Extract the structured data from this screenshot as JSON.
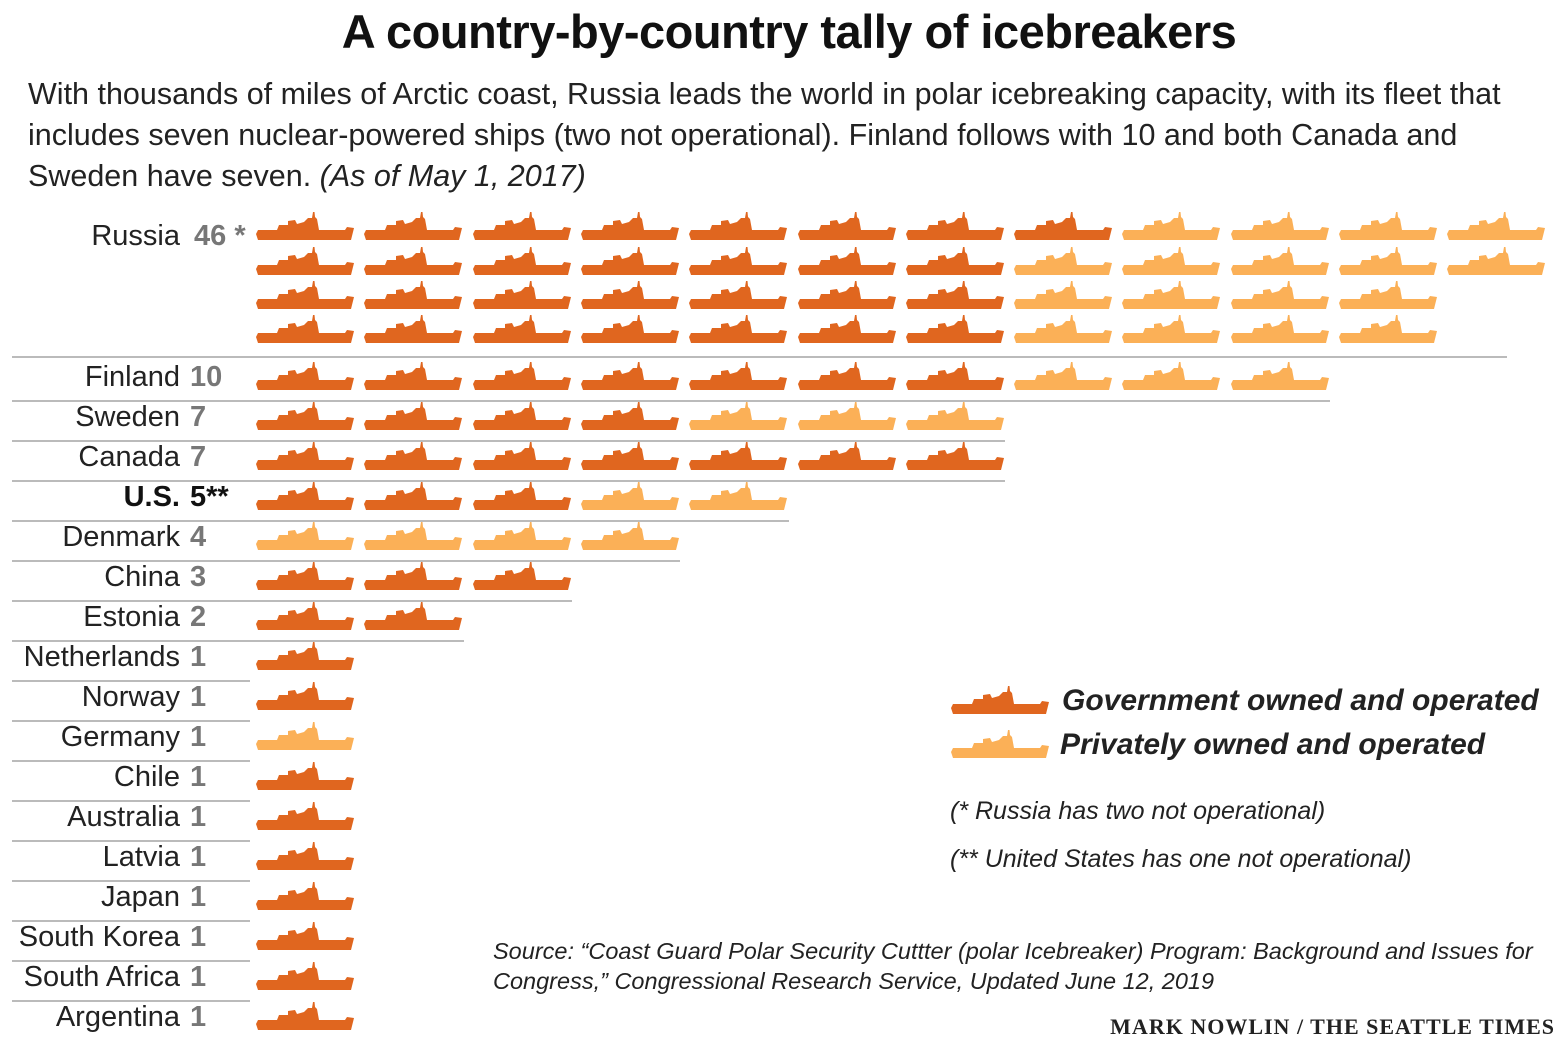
{
  "title": "A country-by-country tally of icebreakers",
  "subtitle": "With thousands of miles of Arctic coast, Russia leads the world in polar icebreaking capacity, with its fleet that includes seven nuclear-powered ships (two not operational). Finland follows with 10 and both Canada and Sweden have seven.",
  "subtitle_date": "(As of May 1, 2017)",
  "colors": {
    "government": "#e0661f",
    "private": "#fbb057"
  },
  "legend": {
    "government": "Government owned and operated",
    "private": "Privately owned and operated"
  },
  "notes": [
    "(* Russia has two not operational)",
    "(** United States has one not operational)"
  ],
  "source": "Source: “Coast Guard Polar Security Cuttter (polar Icebreaker) Program: Background and Issues for Congress,” Congressional Research Service, Updated June 12, 2019",
  "credit": "MARK NOWLIN / THE SEATTLE TIMES",
  "chart_data": {
    "type": "pictogram",
    "unit": "one icebreaker per icon",
    "categories": [
      "Russia",
      "Finland",
      "Sweden",
      "Canada",
      "U.S.",
      "Denmark",
      "China",
      "Estonia",
      "Netherlands",
      "Norway",
      "Germany",
      "Chile",
      "Australia",
      "Latvia",
      "Japan",
      "South Korea",
      "South Africa",
      "Argentina"
    ],
    "count_labels": [
      "46 *",
      "10",
      "7",
      "7",
      "5**",
      "4",
      "3",
      "2",
      "1",
      "1",
      "1",
      "1",
      "1",
      "1",
      "1",
      "1",
      "1",
      "1"
    ],
    "series": [
      {
        "name": "Government owned and operated",
        "values": [
          29,
          7,
          4,
          7,
          3,
          0,
          3,
          2,
          1,
          1,
          0,
          1,
          1,
          1,
          1,
          1,
          1,
          1
        ]
      },
      {
        "name": "Privately owned and operated",
        "values": [
          17,
          3,
          3,
          0,
          2,
          4,
          0,
          0,
          0,
          0,
          1,
          0,
          0,
          0,
          0,
          0,
          0,
          0
        ]
      }
    ],
    "russia_rows": [
      {
        "government": 8,
        "private": 4
      },
      {
        "government": 7,
        "private": 5
      },
      {
        "government": 7,
        "private": 4
      },
      {
        "government": 7,
        "private": 4
      }
    ],
    "highlight": "U.S."
  }
}
